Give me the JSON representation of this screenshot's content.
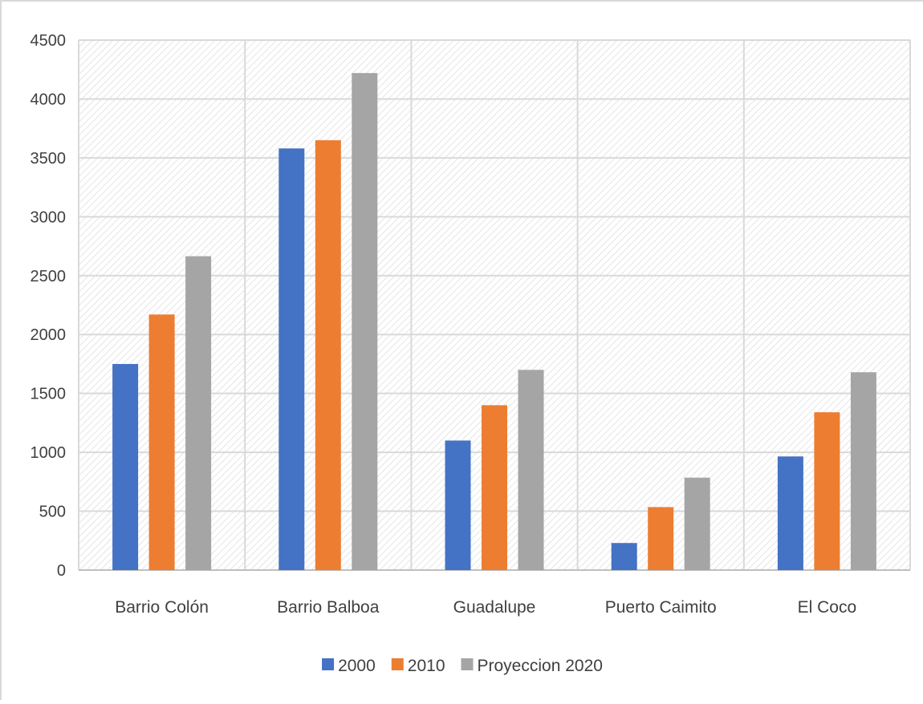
{
  "chart_data": {
    "type": "bar",
    "categories": [
      "Barrio Colón",
      "Barrio Balboa",
      "Guadalupe",
      "Puerto Caimito",
      "El Coco"
    ],
    "series": [
      {
        "name": "2000",
        "values": [
          1750,
          3580,
          1100,
          230,
          965
        ],
        "color": "#4472c4"
      },
      {
        "name": "2010",
        "values": [
          2170,
          3650,
          1400,
          535,
          1340
        ],
        "color": "#ed7d31"
      },
      {
        "name": "Proyeccion 2020",
        "values": [
          2665,
          4220,
          1700,
          785,
          1680
        ],
        "color": "#a5a5a5"
      }
    ],
    "title": "",
    "xlabel": "",
    "ylabel": "",
    "ylim": [
      0,
      4500
    ],
    "yticks": [
      "0",
      "500",
      "1000",
      "1500",
      "2000",
      "2500",
      "3000",
      "3500",
      "4000",
      "4500"
    ],
    "grid": true,
    "plot_background": "diagonal hatch",
    "legend_position": "bottom"
  }
}
